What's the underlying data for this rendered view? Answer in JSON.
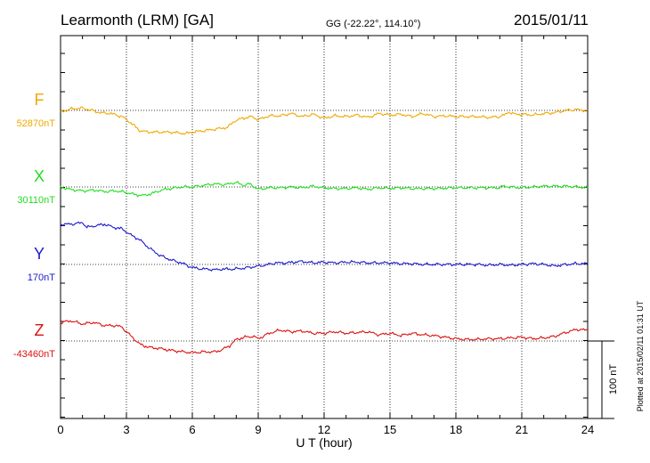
{
  "header": {
    "station": "Learmonth (LRM)  [GA]",
    "coords": "GG (-22.22°, 114.10°)",
    "date": "2015/01/11"
  },
  "footer": {
    "plotted": "Plotted at 2015/02/11 01:31  UT",
    "scale_label": "100 nT"
  },
  "chart_data": {
    "type": "line",
    "xlabel": "U T (hour)",
    "ylabel": "",
    "xlim": [
      0,
      24
    ],
    "xticks": [
      0,
      3,
      6,
      9,
      12,
      15,
      18,
      21,
      24
    ],
    "xtick_labels": [
      "0",
      "3",
      "6",
      "9",
      "12",
      "15",
      "18",
      "21",
      "24"
    ],
    "scale_nT": 100,
    "grid": true,
    "series": [
      {
        "name": "F",
        "baseline_label": "52870nT",
        "baseline_nT": 52870,
        "color": "#f0a800",
        "x": [
          0,
          0.5,
          1,
          1.3,
          1.8,
          2.3,
          2.8,
          3.2,
          3.6,
          4,
          5,
          5.7,
          6,
          6.6,
          7.1,
          7.6,
          7.9,
          8.3,
          8.7,
          9,
          9.5,
          10,
          10.5,
          11,
          11.5,
          12,
          12.5,
          13,
          13.5,
          14,
          14.5,
          15,
          15.5,
          16,
          16.5,
          17,
          17.5,
          18,
          18.5,
          19,
          19.5,
          20,
          20.2,
          20.4,
          20.7,
          21,
          21.5,
          22,
          22.5,
          23,
          23.5,
          24
        ],
        "y": [
          2,
          -2,
          -3,
          -1,
          3,
          4,
          8,
          16,
          26,
          28,
          28,
          30,
          28,
          26,
          24,
          22,
          14,
          10,
          8,
          12,
          7,
          7,
          4,
          8,
          5,
          10,
          7,
          8,
          6,
          9,
          4,
          6,
          5,
          8,
          4,
          8,
          7,
          8,
          8,
          8,
          9,
          8,
          6,
          2,
          5,
          5,
          6,
          4,
          3,
          0,
          -1,
          0
        ]
      },
      {
        "name": "X",
        "baseline_label": "30110nT",
        "baseline_nT": 30110,
        "color": "#22dd22",
        "x": [
          0,
          0.4,
          1,
          1.6,
          2,
          2.5,
          3,
          3.4,
          3.8,
          4.2,
          4.6,
          5,
          5.5,
          6,
          6.5,
          7,
          7.5,
          8,
          8.3,
          8.6,
          9,
          9.5,
          10,
          10.5,
          11,
          11.5,
          12,
          12.5,
          13,
          13.5,
          14,
          14.5,
          15,
          15.5,
          16,
          17,
          18,
          19,
          20,
          20.2,
          20.5,
          21,
          22,
          22.5,
          23,
          23.5,
          24
        ],
        "y": [
          0,
          3,
          5,
          4,
          6,
          5,
          7,
          10,
          11,
          8,
          4,
          2,
          0,
          0,
          -2,
          -4,
          -3,
          -6,
          -2,
          -4,
          3,
          1,
          1,
          0,
          1,
          -1,
          1,
          2,
          2,
          1,
          3,
          1,
          2,
          1,
          2,
          2,
          1,
          1,
          1,
          -1,
          0,
          1,
          -1,
          -1,
          -1,
          0,
          1
        ]
      },
      {
        "name": "Y",
        "baseline_label": "170nT",
        "baseline_nT": 170,
        "color": "#1a1acc",
        "x": [
          0,
          0.5,
          1,
          1.2,
          1.6,
          2,
          2.4,
          2.8,
          3.2,
          3.6,
          4,
          4.5,
          5,
          5.5,
          6,
          6.5,
          6.8,
          7,
          7.4,
          7.8,
          8.3,
          8.8,
          9.3,
          9.8,
          10.3,
          11,
          11.5,
          12,
          12.5,
          13,
          13.5,
          14,
          14.5,
          15,
          15.5,
          16,
          16.5,
          17,
          17.5,
          18,
          18.5,
          19,
          19.5,
          20,
          20.5,
          21,
          21.5,
          22,
          22.5,
          23,
          23.5,
          24
        ],
        "y": [
          -52,
          -52,
          -54,
          -48,
          -50,
          -52,
          -48,
          -46,
          -38,
          -32,
          -22,
          -12,
          -6,
          -2,
          4,
          6,
          6,
          7,
          6,
          6,
          5,
          3,
          1,
          -2,
          -2,
          -4,
          -2,
          -3,
          -2,
          -3,
          -3,
          -2,
          -2,
          -2,
          -1,
          -1,
          0,
          0,
          0,
          0,
          0,
          0,
          1,
          0,
          1,
          0,
          -1,
          0,
          2,
          0,
          -1,
          -1
        ]
      },
      {
        "name": "Z",
        "baseline_label": "-43460nT",
        "baseline_nT": -43460,
        "color": "#dd1111",
        "x": [
          0,
          0.5,
          1,
          1.5,
          2,
          2.5,
          2.8,
          3,
          3.3,
          3.6,
          4,
          4.6,
          5,
          5.6,
          6,
          6.5,
          7,
          7.3,
          7.7,
          8,
          8.4,
          8.8,
          9,
          9.5,
          10,
          10.5,
          11,
          11.5,
          12,
          12.5,
          13,
          13.5,
          14,
          14.5,
          15,
          15.5,
          16,
          16.5,
          17,
          17.5,
          18,
          18.5,
          19,
          19.5,
          20,
          20.5,
          21,
          21.5,
          22,
          22.5,
          23,
          23.5,
          24
        ],
        "y": [
          -24,
          -26,
          -22,
          -24,
          -20,
          -20,
          -18,
          -12,
          -4,
          4,
          8,
          10,
          12,
          14,
          15,
          14,
          14,
          12,
          6,
          -2,
          -5,
          -6,
          -3,
          -10,
          -14,
          -12,
          -13,
          -10,
          -10,
          -12,
          -10,
          -11,
          -12,
          -8,
          -10,
          -7,
          -10,
          -8,
          -7,
          -5,
          -3,
          -2,
          -2,
          -3,
          -3,
          -4,
          -5,
          -3,
          -4,
          -6,
          -11,
          -15,
          -14
        ]
      }
    ]
  }
}
